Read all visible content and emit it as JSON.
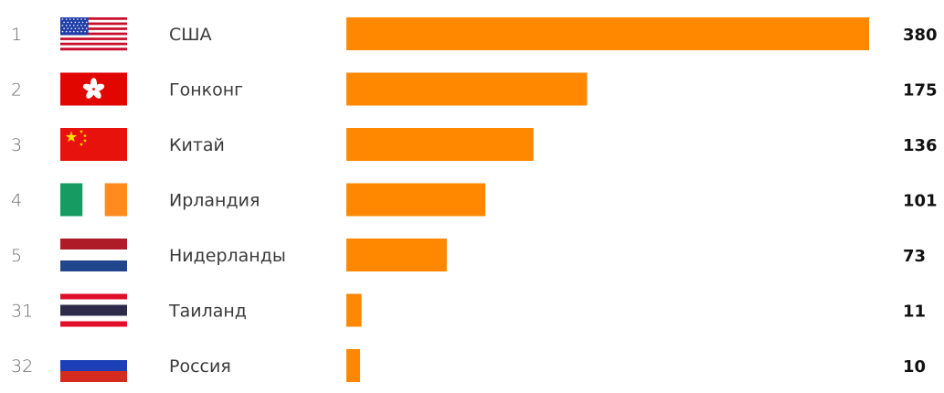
{
  "chart_data": {
    "type": "bar",
    "orientation": "horizontal",
    "rows": [
      {
        "rank": "1",
        "country": "США",
        "value": 380,
        "flag": "us-flag-icon"
      },
      {
        "rank": "2",
        "country": "Гонконг",
        "value": 175,
        "flag": "hong-kong-flag-icon"
      },
      {
        "rank": "3",
        "country": "Китай",
        "value": 136,
        "flag": "china-flag-icon"
      },
      {
        "rank": "4",
        "country": "Ирландия",
        "value": 101,
        "flag": "ireland-flag-icon"
      },
      {
        "rank": "5",
        "country": "Нидерланды",
        "value": 73,
        "flag": "netherlands-flag-icon"
      },
      {
        "rank": "31",
        "country": "Таиланд",
        "value": 11,
        "flag": "thailand-flag-icon"
      },
      {
        "rank": "32",
        "country": "Россия",
        "value": 10,
        "flag": "russia-flag-icon"
      }
    ],
    "xlim": [
      0,
      380
    ],
    "grid": false,
    "legend": "none",
    "bar_color": "#ff8800"
  }
}
